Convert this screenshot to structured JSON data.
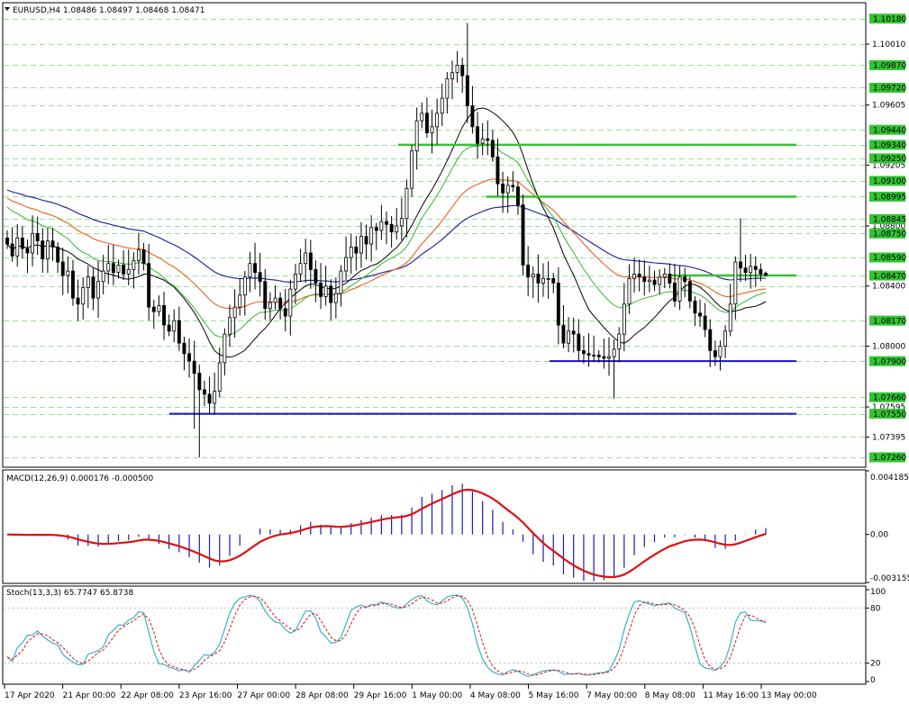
{
  "colors": {
    "candle": "#000000",
    "grid": "#9fdc9f",
    "ma_fast": "#000000",
    "ma_mid": "#33b833",
    "ma_slow_red": "#e8601e",
    "ma_slow_blue": "#1a1aa0",
    "resistance": "#33c433",
    "support": "#1414c8",
    "macd_hist": "#1c1caa",
    "macd_signal": "#dd1111",
    "stoch_main": "#3ab0c8",
    "stoch_signal": "#dd1111",
    "price_badge": "#33c433"
  },
  "chart_data": [
    {
      "type": "candlestick",
      "title": "EURUSD,H4  1.08486 1.08497 1.08468 1.08471",
      "symbol": "EURUSD",
      "timeframe": "H4",
      "ohlc_header": {
        "open": 1.08486,
        "high": 1.08497,
        "low": 1.08468,
        "close": 1.08471
      },
      "ylim": [
        1.072,
        1.1028
      ],
      "y_ticks": [
        "1.10010",
        "1.09605",
        "1.09205",
        "1.08800",
        "1.08400",
        "1.08000",
        "1.07595",
        "1.07395"
      ],
      "level_labels": [
        "1.10180",
        "1.09870",
        "1.09720",
        "1.09440",
        "1.09340",
        "1.09250",
        "1.09100",
        "1.08995",
        "1.08845",
        "1.08750",
        "1.08590",
        "1.08470",
        "1.08170",
        "1.07900",
        "1.07660",
        "1.07550",
        "1.07260"
      ],
      "resistance_levels": [
        {
          "price": 1.0934,
          "from": 442,
          "to": 884
        },
        {
          "price": 1.08995,
          "from": 540,
          "to": 884
        },
        {
          "price": 1.0847,
          "from": 745,
          "to": 884
        }
      ],
      "support_levels": [
        {
          "price": 1.079,
          "from": 610,
          "to": 884
        },
        {
          "price": 1.0755,
          "from": 188,
          "to": 884
        }
      ],
      "x_labels": [
        "17 Apr 2020",
        "21 Apr 00:00",
        "22 Apr 08:00",
        "23 Apr 16:00",
        "27 Apr 00:00",
        "28 Apr 08:00",
        "29 Apr 16:00",
        "1 May 00:00",
        "4 May 08:00",
        "5 May 16:00",
        "7 May 00:00",
        "8 May 08:00",
        "11 May 16:00",
        "13 May 00:00"
      ],
      "closes": [
        1.0868,
        1.086,
        1.0872,
        1.0865,
        1.0862,
        1.0875,
        1.087,
        1.0858,
        1.087,
        1.0866,
        1.0856,
        1.0847,
        1.085,
        1.0832,
        1.0828,
        1.0839,
        1.0846,
        1.0832,
        1.0843,
        1.085,
        1.0855,
        1.0849,
        1.0854,
        1.0848,
        1.0851,
        1.0857,
        1.0864,
        1.0855,
        1.0826,
        1.0823,
        1.0827,
        1.0814,
        1.081,
        1.0817,
        1.0802,
        1.0795,
        1.079,
        1.0782,
        1.0771,
        1.0768,
        1.0762,
        1.077,
        1.0789,
        1.0808,
        1.0819,
        1.0826,
        1.0834,
        1.0846,
        1.0855,
        1.0849,
        1.0843,
        1.0825,
        1.0829,
        1.0832,
        1.0825,
        1.082,
        1.0838,
        1.0848,
        1.0855,
        1.0862,
        1.0851,
        1.0842,
        1.0833,
        1.084,
        1.0829,
        1.0835,
        1.085,
        1.0859,
        1.0866,
        1.0862,
        1.0873,
        1.0868,
        1.0879,
        1.0877,
        1.0883,
        1.0881,
        1.0876,
        1.088,
        1.0885,
        1.0905,
        1.093,
        1.095,
        1.0955,
        1.0942,
        1.0946,
        1.0955,
        1.0965,
        1.0978,
        1.0982,
        1.0987,
        1.098,
        1.096,
        1.0946,
        1.0935,
        1.0938,
        1.0937,
        1.0926,
        1.0908,
        1.0902,
        1.0907,
        1.0906,
        1.0894,
        1.0854,
        1.0846,
        1.0848,
        1.0842,
        1.0845,
        1.0845,
        1.0842,
        1.0814,
        1.0802,
        1.081,
        1.0808,
        1.0797,
        1.0795,
        1.0794,
        1.0794,
        1.0793,
        1.0792,
        1.0793,
        1.0798,
        1.0808,
        1.0828,
        1.0845,
        1.0848,
        1.0846,
        1.0843,
        1.0844,
        1.0841,
        1.0846,
        1.0848,
        1.0842,
        1.083,
        1.0846,
        1.0843,
        1.083,
        1.0822,
        1.082,
        1.0811,
        1.0797,
        1.0793,
        1.08,
        1.081,
        1.0828,
        1.0856,
        1.0852,
        1.0849,
        1.0853,
        1.0851,
        1.0848,
        1.0847
      ]
    },
    {
      "type": "bar",
      "title": "MACD(12,26,9) 0.000176 -0.000500",
      "ylim": [
        -0.003155,
        0.004185
      ],
      "y_ticks": [
        "0.004185",
        "0.00",
        "-0.003155"
      ]
    },
    {
      "type": "line",
      "title": "Stoch(13,3,3) 65.7747 65.8738",
      "ylim": [
        0,
        100
      ],
      "y_ticks": [
        "100",
        "80",
        "20",
        "0"
      ]
    }
  ]
}
